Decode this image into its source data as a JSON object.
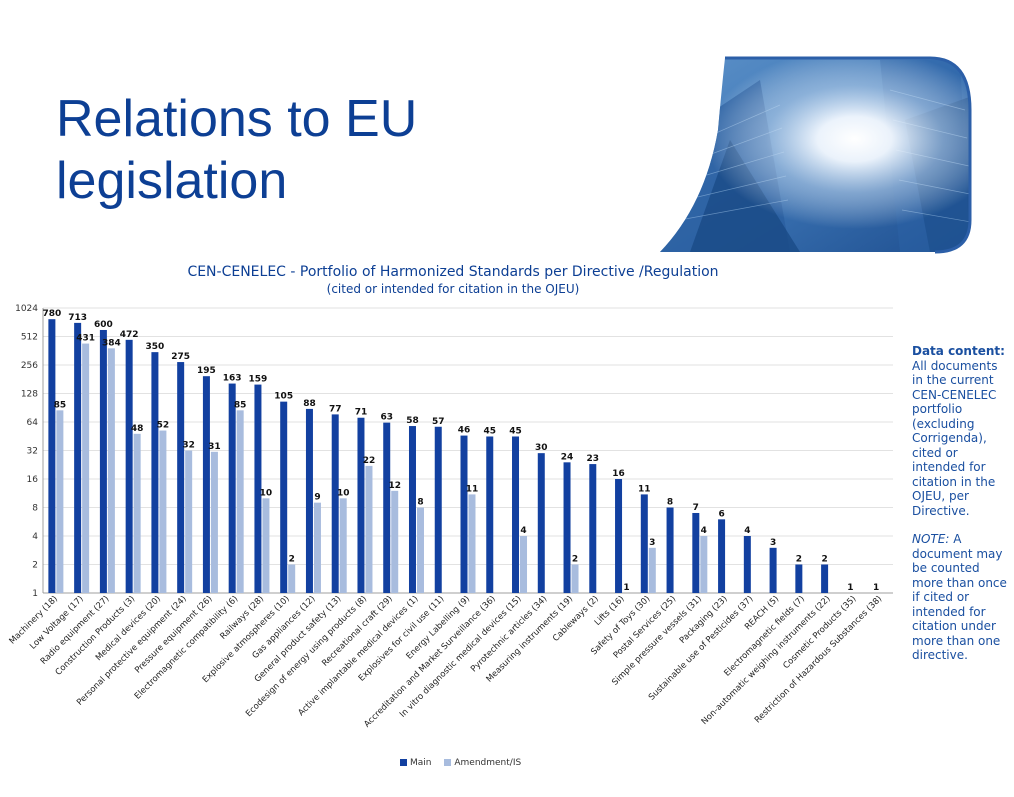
{
  "slide": {
    "title": "Relations to EU legislation"
  },
  "note": {
    "heading": "Data content:",
    "body": "All documents in the current CEN-CENELEC portfolio (excluding Corrigenda), cited or intended for citation in the OJEU, per Directive.",
    "note_label": "NOTE:",
    "note_body": "A document may be counted more than once if cited or intended for citation under more than one directive."
  },
  "colors": {
    "main": "#1240a0",
    "amendment": "#a8bcde",
    "title": "#0d3f94"
  },
  "chart_data": {
    "type": "bar",
    "title": "CEN-CENELEC - Portfolio of Harmonized Standards per Directive /Regulation",
    "subtitle": "(cited or intended for citation in the OJEU)",
    "y_scale": "log2",
    "ylim": [
      1,
      1024
    ],
    "y_ticks": [
      "1",
      "2",
      "4",
      "8",
      "16",
      "32",
      "64",
      "128",
      "256",
      "512",
      "1024"
    ],
    "legend": [
      "Main",
      "Amendment/IS"
    ],
    "categories": [
      "Machinery (18)",
      "Low Voltage (17)",
      "Radio equipment (27)",
      "Construction Products (3)",
      "Medical devices (20)",
      "Personal protective equipment (24)",
      "Pressure equipment (26)",
      "Electromagnetic compatibility (6)",
      "Railways (28)",
      "Explosive atmospheres (10)",
      "Gas appliances (12)",
      "General product safety (13)",
      "Ecodesign of energy using products (8)",
      "Recreational craft (29)",
      "Active implantable medical devices (1)",
      "Explosives for civil use (11)",
      "Energy Labelling (9)",
      "Accreditation and Market Surveillance (36)",
      "In vitro diagnostic medical devices (15)",
      "Pyrotechnic articles (34)",
      "Measuring instruments (19)",
      "Cableways (2)",
      "Lifts (16)",
      "Safety of Toys (30)",
      "Postal Services (25)",
      "Simple pressure vessels (31)",
      "Packaging (23)",
      "Sustainable use of Pesticides (37)",
      "REACH (5)",
      "Electromagnetic fields (7)",
      "Non-automatic weighing instruments (22)",
      "Cosmetic Products (35)",
      "Restriction of Hazardous Substances (38)"
    ],
    "series": [
      {
        "name": "Main",
        "values": [
          780,
          713,
          600,
          472,
          350,
          275,
          195,
          163,
          159,
          105,
          88,
          77,
          71,
          63,
          58,
          57,
          46,
          45,
          45,
          30,
          24,
          23,
          16,
          11,
          8,
          7,
          6,
          4,
          3,
          2,
          2,
          1,
          1
        ]
      },
      {
        "name": "Amendment/IS",
        "values": [
          85,
          431,
          384,
          48,
          52,
          32,
          31,
          85,
          10,
          2,
          9,
          10,
          22,
          12,
          8,
          null,
          11,
          null,
          4,
          null,
          2,
          null,
          1,
          3,
          null,
          4,
          null,
          null,
          null,
          null,
          null,
          null,
          null
        ]
      }
    ]
  }
}
